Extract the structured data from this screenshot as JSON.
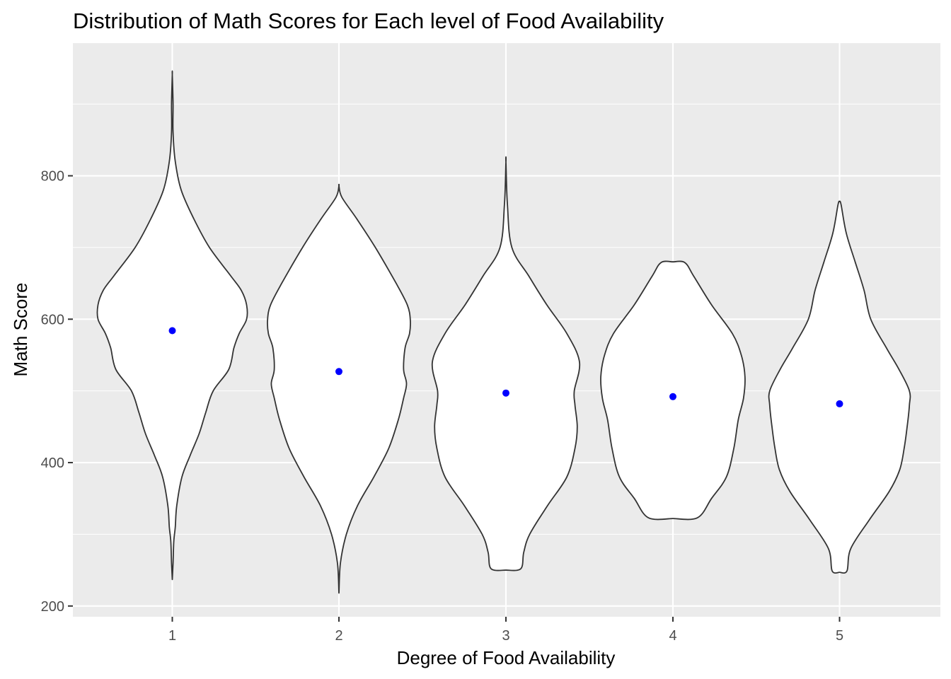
{
  "chart_data": {
    "type": "violin",
    "title": "Distribution of Math Scores for Each level of Food Availability",
    "xlabel": "Degree of Food Availability",
    "ylabel": "Math Score",
    "ylim": [
      185,
      985
    ],
    "y_ticks": [
      200,
      400,
      600,
      800
    ],
    "categories": [
      "1",
      "2",
      "3",
      "4",
      "5"
    ],
    "colors": {
      "panel": "#EBEBEB",
      "grid": "#FFFFFF",
      "violin_fill": "#FFFFFF",
      "violin_outline": "#333333",
      "mean_point": "#0000FF"
    },
    "grid": true,
    "violins": [
      {
        "category": "1",
        "mean": 584,
        "min": 237,
        "max": 941,
        "profile": [
          [
            237,
            0.0
          ],
          [
            260,
            0.01
          ],
          [
            290,
            0.02
          ],
          [
            310,
            0.04
          ],
          [
            340,
            0.06
          ],
          [
            380,
            0.13
          ],
          [
            410,
            0.24
          ],
          [
            440,
            0.36
          ],
          [
            470,
            0.45
          ],
          [
            500,
            0.55
          ],
          [
            530,
            0.76
          ],
          [
            560,
            0.83
          ],
          [
            580,
            0.9
          ],
          [
            600,
            1.0
          ],
          [
            620,
            1.0
          ],
          [
            640,
            0.93
          ],
          [
            660,
            0.79
          ],
          [
            700,
            0.5
          ],
          [
            740,
            0.29
          ],
          [
            780,
            0.12
          ],
          [
            820,
            0.04
          ],
          [
            860,
            0.01
          ],
          [
            900,
            0.01
          ],
          [
            941,
            0.0
          ]
        ]
      },
      {
        "category": "2",
        "mean": 527,
        "min": 218,
        "max": 786,
        "profile": [
          [
            218,
            0.0
          ],
          [
            260,
            0.02
          ],
          [
            300,
            0.1
          ],
          [
            340,
            0.25
          ],
          [
            380,
            0.47
          ],
          [
            420,
            0.67
          ],
          [
            460,
            0.8
          ],
          [
            490,
            0.87
          ],
          [
            510,
            0.91
          ],
          [
            530,
            0.87
          ],
          [
            560,
            0.89
          ],
          [
            580,
            0.95
          ],
          [
            600,
            0.96
          ],
          [
            620,
            0.92
          ],
          [
            650,
            0.77
          ],
          [
            700,
            0.49
          ],
          [
            740,
            0.24
          ],
          [
            770,
            0.04
          ],
          [
            786,
            0.0
          ]
        ]
      },
      {
        "category": "3",
        "mean": 497,
        "min": 250,
        "max": 819,
        "profile": [
          [
            250,
            0.0
          ],
          [
            252,
            0.2
          ],
          [
            275,
            0.24
          ],
          [
            300,
            0.32
          ],
          [
            340,
            0.56
          ],
          [
            380,
            0.82
          ],
          [
            420,
            0.93
          ],
          [
            450,
            0.96
          ],
          [
            480,
            0.93
          ],
          [
            500,
            0.92
          ],
          [
            540,
            0.99
          ],
          [
            580,
            0.82
          ],
          [
            620,
            0.55
          ],
          [
            660,
            0.31
          ],
          [
            700,
            0.08
          ],
          [
            760,
            0.02
          ],
          [
            819,
            0.0
          ]
        ]
      },
      {
        "category": "4",
        "mean": 492,
        "min": 322,
        "max": 680,
        "profile": [
          [
            322,
            0.0
          ],
          [
            323,
            0.33
          ],
          [
            350,
            0.52
          ],
          [
            380,
            0.72
          ],
          [
            420,
            0.82
          ],
          [
            460,
            0.88
          ],
          [
            490,
            0.95
          ],
          [
            520,
            0.97
          ],
          [
            550,
            0.92
          ],
          [
            580,
            0.8
          ],
          [
            620,
            0.52
          ],
          [
            660,
            0.28
          ],
          [
            679,
            0.16
          ],
          [
            680,
            0.0
          ]
        ]
      },
      {
        "category": "5",
        "mean": 482,
        "min": 247,
        "max": 764,
        "profile": [
          [
            247,
            0.0
          ],
          [
            249,
            0.1
          ],
          [
            280,
            0.15
          ],
          [
            320,
            0.4
          ],
          [
            360,
            0.67
          ],
          [
            390,
            0.81
          ],
          [
            420,
            0.87
          ],
          [
            450,
            0.91
          ],
          [
            480,
            0.94
          ],
          [
            500,
            0.94
          ],
          [
            530,
            0.8
          ],
          [
            560,
            0.63
          ],
          [
            600,
            0.42
          ],
          [
            640,
            0.33
          ],
          [
            680,
            0.21
          ],
          [
            720,
            0.09
          ],
          [
            760,
            0.02
          ],
          [
            764,
            0.0
          ]
        ]
      }
    ]
  }
}
